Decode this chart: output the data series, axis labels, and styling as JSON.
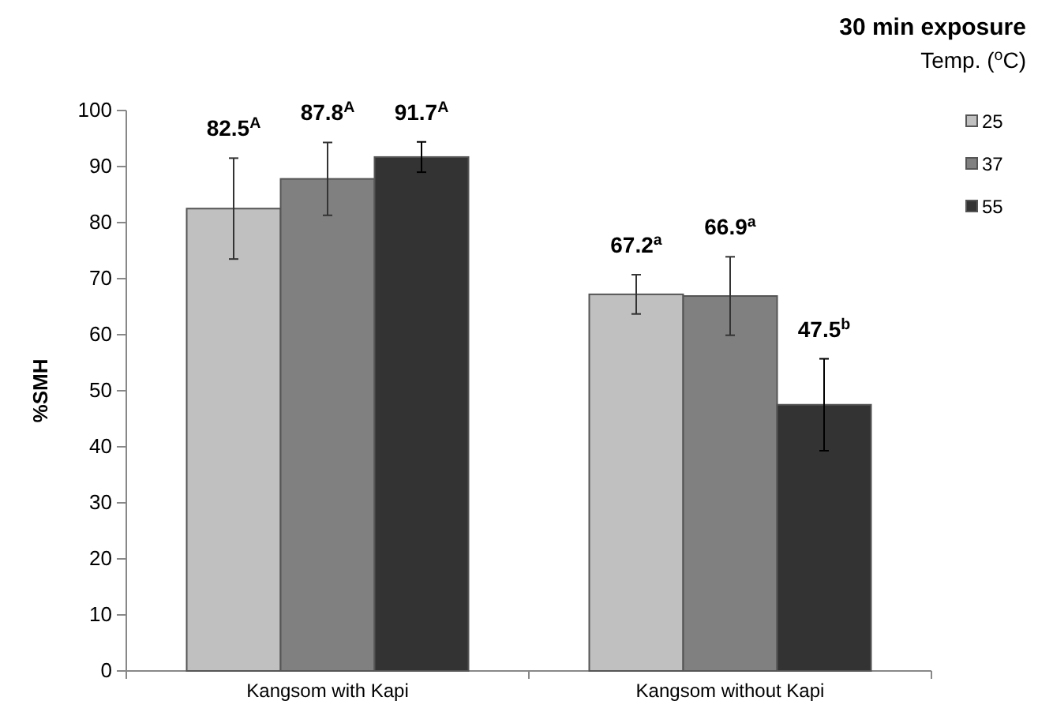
{
  "chart_data": {
    "type": "bar",
    "title": "30 min exposure",
    "ylabel": "%SMH",
    "legend_title": "Temp. ($^{o}$C)",
    "categories": [
      "Kangsom with Kapi",
      "Kangsom without Kapi"
    ],
    "series": [
      {
        "name": "25",
        "color": "#c0c0c0",
        "values": [
          82.5,
          67.2
        ],
        "errors": [
          9,
          3.5
        ],
        "value_labels": [
          "82.5$^{A}$",
          "67.2$^{a}$"
        ]
      },
      {
        "name": "37",
        "color": "#808080",
        "values": [
          87.8,
          66.9
        ],
        "errors": [
          6.5,
          7
        ],
        "value_labels": [
          "87.8$^{A}$",
          "66.9$^{a}$"
        ]
      },
      {
        "name": "55",
        "color": "#333333",
        "values": [
          91.7,
          47.5
        ],
        "errors": [
          2.7,
          8.2
        ],
        "value_labels": [
          "91.7$^{A}$",
          "47.5$^{b}$"
        ]
      }
    ],
    "ylim": [
      0,
      100
    ],
    "yticks": [
      0,
      10,
      20,
      30,
      40,
      50,
      60,
      70,
      80,
      90,
      100
    ],
    "grid": false,
    "legend": "top right"
  }
}
